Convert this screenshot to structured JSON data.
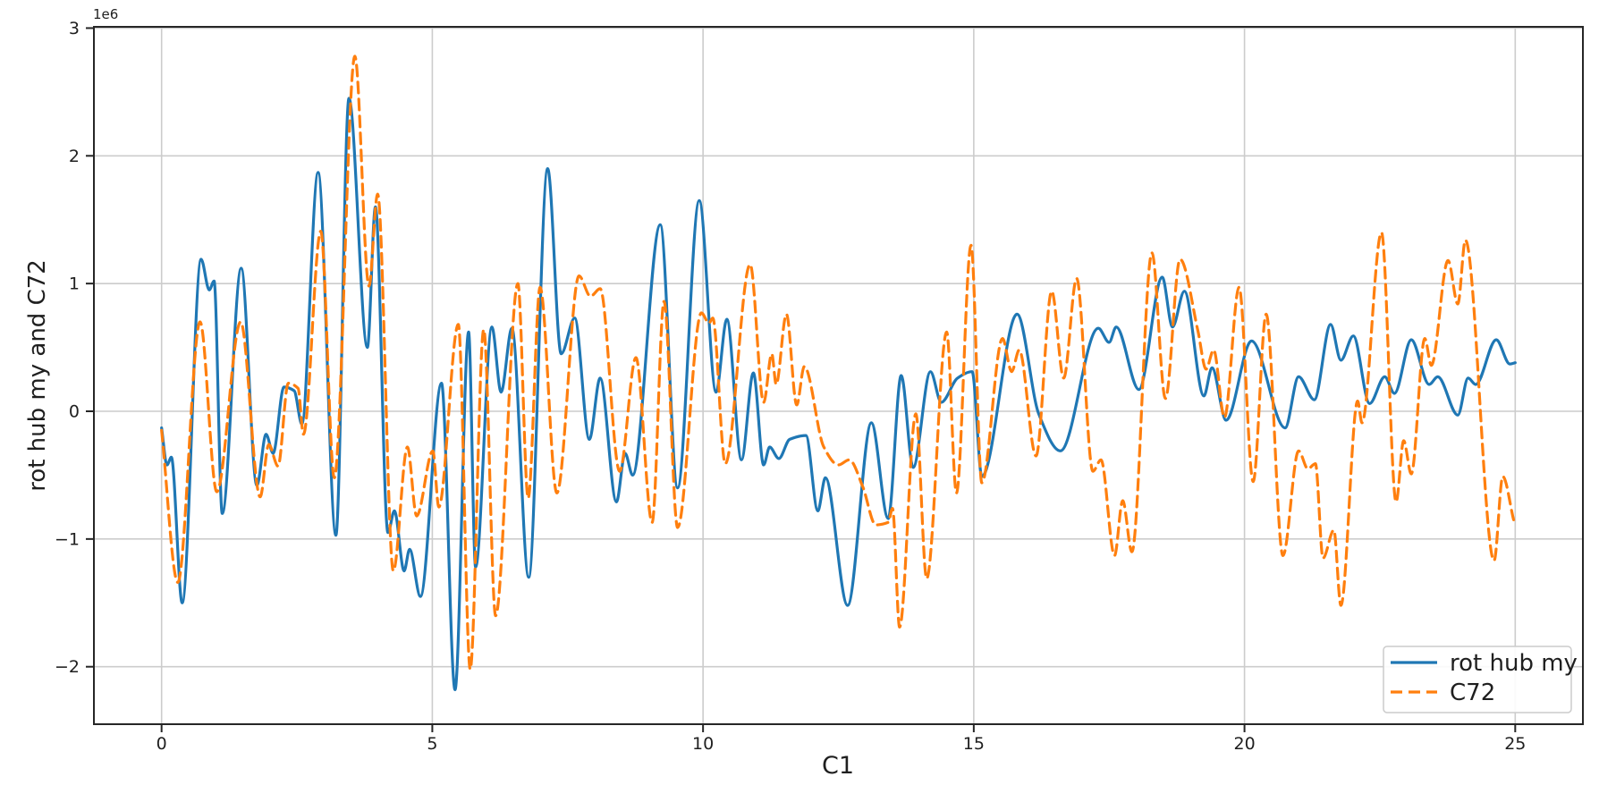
{
  "chart_data": {
    "type": "line",
    "title": "",
    "xlabel": "C1",
    "ylabel": "rot hub my and C72",
    "offset_text": "1e6",
    "grid": true,
    "legend_position": "lower right",
    "xlim": [
      -1.25,
      26.25
    ],
    "ylim": [
      -2.45,
      3.01
    ],
    "x_ticks": {
      "values": [
        0,
        5,
        10,
        15,
        20,
        25
      ],
      "labels": [
        "0",
        "5",
        "10",
        "15",
        "20",
        "25"
      ]
    },
    "y_ticks": {
      "values": [
        3,
        2,
        1,
        0,
        -1,
        -2
      ],
      "labels": [
        "3",
        "2",
        "1",
        "0",
        "−1",
        "−2"
      ]
    },
    "y_unit_note": "y values are in units of 1e6 as indicated by the axis offset text",
    "series": [
      {
        "name": "rot hub my",
        "color": "#1f77b4",
        "style": "solid",
        "points": [
          [
            0.0,
            -0.13
          ],
          [
            0.1,
            -0.42
          ],
          [
            0.18,
            -0.36
          ],
          [
            0.38,
            -1.5
          ],
          [
            0.73,
            1.19
          ],
          [
            0.88,
            0.95
          ],
          [
            0.97,
            1.02
          ],
          [
            1.12,
            -0.8
          ],
          [
            1.47,
            1.12
          ],
          [
            1.76,
            -0.58
          ],
          [
            1.93,
            -0.18
          ],
          [
            2.06,
            -0.33
          ],
          [
            2.26,
            0.19
          ],
          [
            2.45,
            0.16
          ],
          [
            2.59,
            -0.1
          ],
          [
            2.89,
            1.87
          ],
          [
            3.22,
            -0.97
          ],
          [
            3.46,
            2.45
          ],
          [
            3.8,
            0.5
          ],
          [
            3.95,
            1.6
          ],
          [
            4.18,
            -0.95
          ],
          [
            4.3,
            -0.78
          ],
          [
            4.48,
            -1.25
          ],
          [
            4.58,
            -1.08
          ],
          [
            4.78,
            -1.45
          ],
          [
            5.17,
            0.22
          ],
          [
            5.42,
            -2.18
          ],
          [
            5.67,
            0.62
          ],
          [
            5.8,
            -1.22
          ],
          [
            6.1,
            0.66
          ],
          [
            6.27,
            0.15
          ],
          [
            6.47,
            0.65
          ],
          [
            6.78,
            -1.3
          ],
          [
            7.13,
            1.9
          ],
          [
            7.38,
            0.45
          ],
          [
            7.63,
            0.73
          ],
          [
            7.9,
            -0.22
          ],
          [
            8.1,
            0.26
          ],
          [
            8.4,
            -0.71
          ],
          [
            8.56,
            -0.33
          ],
          [
            8.7,
            -0.5
          ],
          [
            9.21,
            1.46
          ],
          [
            9.53,
            -0.6
          ],
          [
            9.93,
            1.65
          ],
          [
            10.24,
            0.15
          ],
          [
            10.44,
            0.72
          ],
          [
            10.71,
            -0.38
          ],
          [
            10.93,
            0.3
          ],
          [
            11.12,
            -0.42
          ],
          [
            11.23,
            -0.28
          ],
          [
            11.4,
            -0.37
          ],
          [
            11.6,
            -0.22
          ],
          [
            11.9,
            -0.19
          ],
          [
            12.12,
            -0.78
          ],
          [
            12.26,
            -0.52
          ],
          [
            12.67,
            -1.52
          ],
          [
            13.11,
            -0.09
          ],
          [
            13.42,
            -0.84
          ],
          [
            13.66,
            0.28
          ],
          [
            13.88,
            -0.44
          ],
          [
            14.2,
            0.31
          ],
          [
            14.4,
            0.07
          ],
          [
            14.7,
            0.26
          ],
          [
            14.97,
            0.31
          ],
          [
            15.15,
            -0.51
          ],
          [
            15.8,
            0.76
          ],
          [
            16.2,
            -0.02
          ],
          [
            16.6,
            -0.31
          ],
          [
            17.3,
            0.65
          ],
          [
            17.5,
            0.54
          ],
          [
            17.63,
            0.66
          ],
          [
            18.05,
            0.17
          ],
          [
            18.48,
            1.05
          ],
          [
            18.67,
            0.66
          ],
          [
            18.89,
            0.94
          ],
          [
            19.25,
            0.12
          ],
          [
            19.4,
            0.34
          ],
          [
            19.66,
            -0.07
          ],
          [
            20.13,
            0.55
          ],
          [
            20.75,
            -0.13
          ],
          [
            21.0,
            0.27
          ],
          [
            21.29,
            0.09
          ],
          [
            21.59,
            0.68
          ],
          [
            21.78,
            0.4
          ],
          [
            22.01,
            0.59
          ],
          [
            22.31,
            0.06
          ],
          [
            22.59,
            0.27
          ],
          [
            22.77,
            0.14
          ],
          [
            23.08,
            0.56
          ],
          [
            23.41,
            0.21
          ],
          [
            23.57,
            0.27
          ],
          [
            23.94,
            -0.03
          ],
          [
            24.13,
            0.26
          ],
          [
            24.27,
            0.21
          ],
          [
            24.65,
            0.56
          ],
          [
            24.9,
            0.37
          ],
          [
            25.0,
            0.38
          ]
        ]
      },
      {
        "name": "C72",
        "color": "#ff7f0e",
        "style": "dashed",
        "points": [
          [
            0.0,
            -0.15
          ],
          [
            0.3,
            -1.34
          ],
          [
            0.71,
            0.7
          ],
          [
            1.02,
            -0.63
          ],
          [
            1.46,
            0.7
          ],
          [
            1.82,
            -0.67
          ],
          [
            1.98,
            -0.26
          ],
          [
            2.15,
            -0.43
          ],
          [
            2.34,
            0.22
          ],
          [
            2.52,
            0.18
          ],
          [
            2.62,
            -0.18
          ],
          [
            2.94,
            1.41
          ],
          [
            3.19,
            -0.52
          ],
          [
            3.57,
            2.78
          ],
          [
            3.83,
            0.98
          ],
          [
            3.99,
            1.7
          ],
          [
            4.28,
            -1.25
          ],
          [
            4.54,
            -0.28
          ],
          [
            4.71,
            -0.82
          ],
          [
            5.01,
            -0.31
          ],
          [
            5.12,
            -0.75
          ],
          [
            5.48,
            0.68
          ],
          [
            5.7,
            -2.02
          ],
          [
            5.95,
            0.64
          ],
          [
            6.17,
            -1.6
          ],
          [
            6.58,
            1.0
          ],
          [
            6.77,
            -0.68
          ],
          [
            6.99,
            0.97
          ],
          [
            7.3,
            -0.64
          ],
          [
            7.71,
            1.06
          ],
          [
            7.92,
            0.9
          ],
          [
            8.1,
            0.96
          ],
          [
            8.46,
            -0.47
          ],
          [
            8.76,
            0.42
          ],
          [
            9.06,
            -0.87
          ],
          [
            9.28,
            0.86
          ],
          [
            9.53,
            -0.91
          ],
          [
            9.97,
            0.77
          ],
          [
            10.11,
            0.69
          ],
          [
            10.18,
            0.73
          ],
          [
            10.41,
            -0.41
          ],
          [
            10.87,
            1.15
          ],
          [
            11.12,
            0.07
          ],
          [
            11.27,
            0.45
          ],
          [
            11.35,
            0.21
          ],
          [
            11.54,
            0.76
          ],
          [
            11.73,
            0.05
          ],
          [
            11.87,
            0.35
          ],
          [
            12.23,
            -0.28
          ],
          [
            12.5,
            -0.42
          ],
          [
            12.7,
            -0.38
          ],
          [
            12.95,
            -0.59
          ],
          [
            13.19,
            -0.89
          ],
          [
            13.42,
            -0.87
          ],
          [
            13.5,
            -0.76
          ],
          [
            13.63,
            -1.69
          ],
          [
            13.93,
            -0.02
          ],
          [
            14.13,
            -1.31
          ],
          [
            14.5,
            0.62
          ],
          [
            14.68,
            -0.64
          ],
          [
            14.95,
            1.3
          ],
          [
            15.15,
            -0.56
          ],
          [
            15.53,
            0.57
          ],
          [
            15.7,
            0.31
          ],
          [
            15.84,
            0.48
          ],
          [
            16.15,
            -0.35
          ],
          [
            16.44,
            0.94
          ],
          [
            16.66,
            0.26
          ],
          [
            16.9,
            1.04
          ],
          [
            17.2,
            -0.47
          ],
          [
            17.35,
            -0.38
          ],
          [
            17.6,
            -1.13
          ],
          [
            17.75,
            -0.7
          ],
          [
            17.92,
            -1.1
          ],
          [
            18.29,
            1.24
          ],
          [
            18.54,
            0.1
          ],
          [
            18.81,
            1.19
          ],
          [
            19.14,
            0.63
          ],
          [
            19.29,
            0.33
          ],
          [
            19.43,
            0.48
          ],
          [
            19.63,
            -0.05
          ],
          [
            19.9,
            0.97
          ],
          [
            20.16,
            -0.55
          ],
          [
            20.4,
            0.76
          ],
          [
            20.71,
            -1.13
          ],
          [
            21.0,
            -0.31
          ],
          [
            21.17,
            -0.45
          ],
          [
            21.31,
            -0.41
          ],
          [
            21.45,
            -1.15
          ],
          [
            21.65,
            -0.93
          ],
          [
            21.78,
            -1.52
          ],
          [
            22.09,
            0.08
          ],
          [
            22.17,
            -0.09
          ],
          [
            22.53,
            1.4
          ],
          [
            22.8,
            -0.71
          ],
          [
            22.94,
            -0.23
          ],
          [
            23.08,
            -0.49
          ],
          [
            23.33,
            0.57
          ],
          [
            23.45,
            0.36
          ],
          [
            23.76,
            1.18
          ],
          [
            23.94,
            0.84
          ],
          [
            24.08,
            1.34
          ],
          [
            24.61,
            -1.17
          ],
          [
            24.77,
            -0.51
          ],
          [
            24.97,
            -0.85
          ]
        ]
      }
    ]
  },
  "colors": {
    "background": "#ffffff",
    "grid": "#cccccc",
    "spine": "#262626",
    "text": "#1f1f1f",
    "legend_border": "#cccccc",
    "legend_background": "#ffffff",
    "series_blue": "#1f77b4",
    "series_orange": "#ff7f0e"
  },
  "legend": {
    "items": [
      {
        "label": "rot hub my",
        "swatch": "solid-line-icon"
      },
      {
        "label": "C72",
        "swatch": "dashed-line-icon"
      }
    ]
  }
}
